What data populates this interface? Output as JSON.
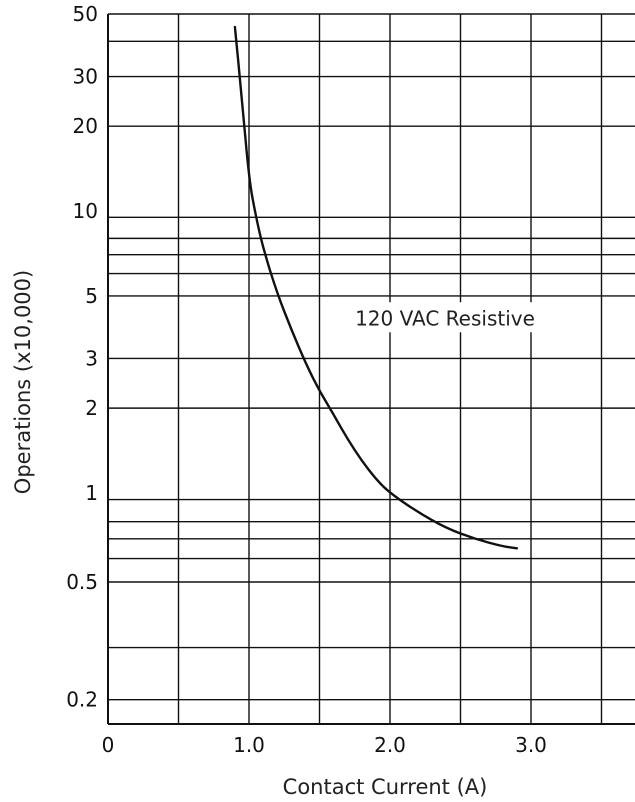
{
  "chart_data": {
    "type": "line",
    "title": "",
    "xlabel": "Contact Current (A)",
    "ylabel": "Operations (x10,000)",
    "xlim": [
      0,
      3.5
    ],
    "y_scale": "log",
    "ylim": [
      0.1,
      50
    ],
    "x_tick_labels": [
      "0",
      "1.0",
      "2.0",
      "3.0"
    ],
    "x_tick_values": [
      0,
      1,
      2,
      3
    ],
    "y_tick_labels": [
      "50",
      "30",
      "20",
      "10",
      "5",
      "3",
      "2",
      "1",
      "0.5",
      "0.2"
    ],
    "y_tick_values": [
      50,
      30,
      20,
      10,
      5,
      3,
      2,
      1,
      0.5,
      0.2
    ],
    "x_gridlines": [
      0,
      0.5,
      1,
      1.5,
      2,
      2.5,
      3,
      3.5
    ],
    "y_gridlines": [
      50,
      40,
      30,
      20,
      9.5,
      8,
      7,
      6,
      5,
      3,
      2,
      0.95,
      0.8,
      0.7,
      0.6,
      0.5,
      0.3,
      0.2
    ],
    "grid": true,
    "annotation": "120 VAC Resistive",
    "series": [
      {
        "name": "",
        "color": "#111111",
        "x": [
          0.9,
          0.95,
          1.0,
          1.05,
          1.1,
          1.2,
          1.3,
          1.4,
          1.5,
          1.6,
          1.7,
          1.8,
          1.9,
          2.0,
          2.2,
          2.4,
          2.6,
          2.8,
          2.9
        ],
        "y": [
          45,
          25,
          13,
          9.5,
          7.4,
          5.1,
          3.8,
          2.9,
          2.3,
          1.9,
          1.55,
          1.3,
          1.12,
          1.0,
          0.86,
          0.76,
          0.7,
          0.66,
          0.65
        ]
      }
    ]
  }
}
